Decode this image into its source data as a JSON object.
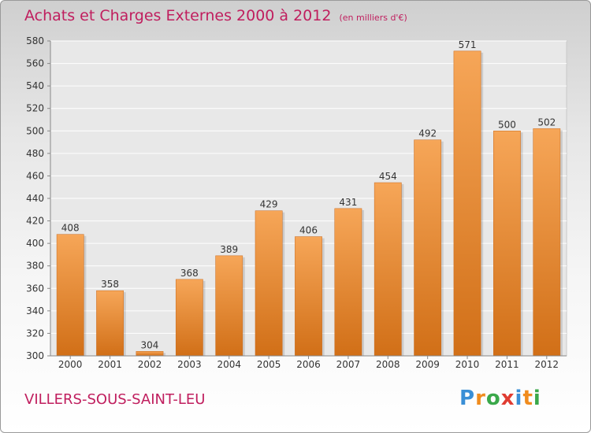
{
  "title": "Achats et Charges Externes 2000 à 2012",
  "subtitle": "(en milliers d'€)",
  "city": "VILLERS-SOUS-SAINT-LEU",
  "logo": {
    "text": "Proxiti",
    "letters": [
      {
        "char": "P",
        "color": "#3a8fd6"
      },
      {
        "char": "r",
        "color": "#f08c1e"
      },
      {
        "char": "o",
        "color": "#3aa84a"
      },
      {
        "char": "x",
        "color": "#e03c31"
      },
      {
        "char": "i",
        "color": "#3a8fd6"
      },
      {
        "char": "t",
        "color": "#f08c1e"
      },
      {
        "char": "i",
        "color": "#3aa84a"
      }
    ]
  },
  "colors": {
    "bar_top": "#f6a658",
    "bar_bottom": "#d16f17",
    "title": "#c01e5e",
    "grid": "#ffffff"
  },
  "chart_data": {
    "type": "bar",
    "categories": [
      "2000",
      "2001",
      "2002",
      "2003",
      "2004",
      "2005",
      "2006",
      "2007",
      "2008",
      "2009",
      "2010",
      "2011",
      "2012"
    ],
    "values": [
      408,
      358,
      304,
      368,
      389,
      429,
      406,
      431,
      454,
      492,
      571,
      500,
      502
    ],
    "ylim": [
      300,
      580
    ],
    "yticks": [
      300,
      320,
      340,
      360,
      380,
      400,
      420,
      440,
      460,
      480,
      500,
      520,
      540,
      560,
      580
    ],
    "grid": true,
    "legend": "none"
  }
}
